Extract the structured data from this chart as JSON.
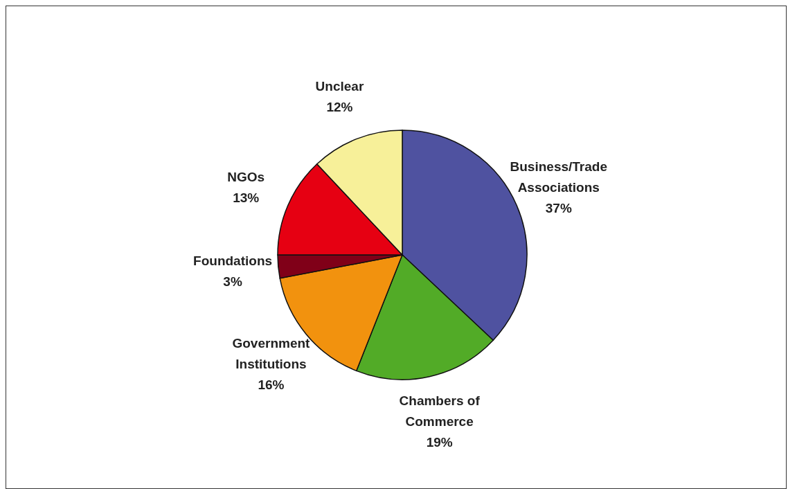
{
  "chart_data": {
    "type": "pie",
    "categories": [
      "Business/Trade Associations",
      "Chambers of Commerce",
      "Government Institutions",
      "Foundations",
      "NGOs",
      "Unclear"
    ],
    "values": [
      37,
      19,
      16,
      3,
      13,
      12
    ],
    "colors": [
      "#4f52a0",
      "#52ab27",
      "#f2920e",
      "#800018",
      "#e60012",
      "#f7f099"
    ],
    "value_labels": [
      "37%",
      "19%",
      "16%",
      "3%",
      "13%",
      "12%"
    ]
  }
}
